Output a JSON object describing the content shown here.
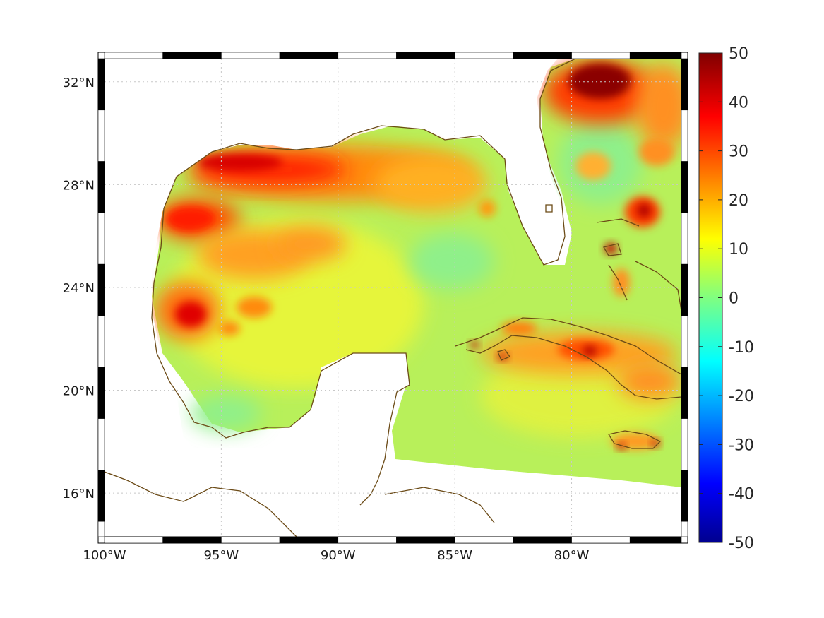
{
  "map": {
    "lon_ticks": [
      "100°W",
      "95°W",
      "90°W",
      "85°W",
      "80°W"
    ],
    "lat_ticks": [
      "32°N",
      "28°N",
      "24°N",
      "20°N",
      "16°N"
    ],
    "lon_range": [
      -100,
      -75.3
    ],
    "lat_range": [
      14.3,
      32.9
    ],
    "grid": "dotted",
    "colormap": "jet",
    "colors": {
      "land_fill": "#ffffff",
      "coastline": "#6b4a16",
      "grid": "#c8c8c8",
      "frame_dark": "#000000",
      "frame_light": "#ffffff"
    }
  },
  "colorbar": {
    "labels": [
      "50",
      "40",
      "30",
      "20",
      "10",
      "0",
      "-10",
      "-20",
      "-30",
      "-40",
      "-50"
    ],
    "range": [
      -50,
      50
    ],
    "placement": "right"
  }
}
